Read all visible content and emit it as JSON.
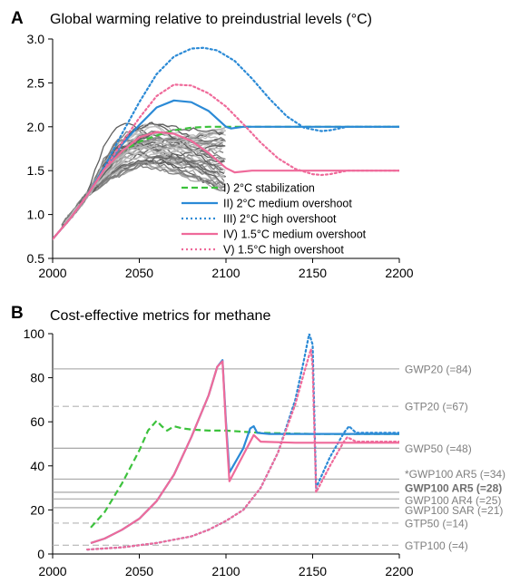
{
  "panels": {
    "a": {
      "letter": "A",
      "title": "Global warming relative to preindustrial levels (°C)"
    },
    "b": {
      "letter": "B",
      "title": "Cost-effective metrics for methane"
    }
  },
  "chart_data": [
    {
      "type": "line",
      "title": "Global warming relative to preindustrial levels (°C)",
      "xlim": [
        2000,
        2200
      ],
      "ylim": [
        0.5,
        3.0
      ],
      "xticks": [
        2000,
        2050,
        2100,
        2150,
        2200
      ],
      "yticks": [
        "0.5",
        "1.0",
        "1.5",
        "2.0",
        "2.5",
        "3.0"
      ],
      "series": [
        {
          "name": "I) 2°C stabilization",
          "color": "#3cc23c",
          "style": "dashed",
          "points": [
            [
              2000,
              0.72
            ],
            [
              2010,
              0.95
            ],
            [
              2020,
              1.22
            ],
            [
              2030,
              1.52
            ],
            [
              2040,
              1.72
            ],
            [
              2050,
              1.83
            ],
            [
              2060,
              1.9
            ],
            [
              2070,
              1.96
            ],
            [
              2080,
              1.99
            ],
            [
              2090,
              2.0
            ],
            [
              2100,
              2.0
            ],
            [
              2150,
              2.0
            ],
            [
              2200,
              2.0
            ]
          ]
        },
        {
          "name": "II) 2°C medium overshoot",
          "color": "#2b8ad6",
          "style": "solid",
          "points": [
            [
              2000,
              0.72
            ],
            [
              2010,
              0.95
            ],
            [
              2020,
              1.22
            ],
            [
              2030,
              1.52
            ],
            [
              2040,
              1.8
            ],
            [
              2050,
              2.02
            ],
            [
              2060,
              2.22
            ],
            [
              2070,
              2.3
            ],
            [
              2080,
              2.28
            ],
            [
              2090,
              2.18
            ],
            [
              2100,
              2.0
            ],
            [
              2103,
              1.98
            ],
            [
              2110,
              2.0
            ],
            [
              2150,
              2.0
            ],
            [
              2200,
              2.0
            ]
          ]
        },
        {
          "name": "III) 2°C high overshoot",
          "color": "#2b8ad6",
          "style": "dotted",
          "points": [
            [
              2000,
              0.72
            ],
            [
              2010,
              0.95
            ],
            [
              2020,
              1.22
            ],
            [
              2030,
              1.55
            ],
            [
              2040,
              1.92
            ],
            [
              2050,
              2.28
            ],
            [
              2060,
              2.6
            ],
            [
              2070,
              2.8
            ],
            [
              2080,
              2.89
            ],
            [
              2087,
              2.9
            ],
            [
              2095,
              2.87
            ],
            [
              2105,
              2.75
            ],
            [
              2115,
              2.55
            ],
            [
              2125,
              2.32
            ],
            [
              2135,
              2.12
            ],
            [
              2145,
              1.99
            ],
            [
              2155,
              1.95
            ],
            [
              2160,
              1.96
            ],
            [
              2170,
              2.0
            ],
            [
              2200,
              2.0
            ]
          ]
        },
        {
          "name": "IV) 1.5°C medium overshoot",
          "color": "#ef6a9a",
          "style": "solid",
          "points": [
            [
              2000,
              0.72
            ],
            [
              2010,
              0.95
            ],
            [
              2020,
              1.22
            ],
            [
              2030,
              1.52
            ],
            [
              2040,
              1.72
            ],
            [
              2050,
              1.88
            ],
            [
              2060,
              1.94
            ],
            [
              2070,
              1.92
            ],
            [
              2080,
              1.84
            ],
            [
              2090,
              1.7
            ],
            [
              2100,
              1.53
            ],
            [
              2105,
              1.48
            ],
            [
              2115,
              1.5
            ],
            [
              2200,
              1.5
            ]
          ]
        },
        {
          "name": "V) 1.5°C high overshoot",
          "color": "#ef6a9a",
          "style": "dotted",
          "points": [
            [
              2000,
              0.72
            ],
            [
              2010,
              0.95
            ],
            [
              2020,
              1.22
            ],
            [
              2030,
              1.52
            ],
            [
              2040,
              1.82
            ],
            [
              2050,
              2.1
            ],
            [
              2060,
              2.35
            ],
            [
              2070,
              2.48
            ],
            [
              2080,
              2.47
            ],
            [
              2090,
              2.38
            ],
            [
              2100,
              2.23
            ],
            [
              2110,
              2.03
            ],
            [
              2120,
              1.82
            ],
            [
              2130,
              1.64
            ],
            [
              2140,
              1.52
            ],
            [
              2150,
              1.46
            ],
            [
              2155,
              1.45
            ],
            [
              2160,
              1.46
            ],
            [
              2170,
              1.5
            ],
            [
              2200,
              1.5
            ]
          ]
        }
      ],
      "legend": [
        "I) 2°C stabilization",
        "II) 2°C medium overshoot",
        "III) 2°C high overshoot",
        "IV) 1.5°C medium overshoot",
        "V) 1.5°C high overshoot"
      ],
      "legend_position": "bottom-center",
      "background_ensemble": "grey model trajectories 2005–2100"
    },
    {
      "type": "line",
      "title": "Cost-effective metrics for methane",
      "xlim": [
        2000,
        2200
      ],
      "ylim": [
        0,
        100
      ],
      "xticks": [
        2000,
        2050,
        2100,
        2150,
        2200
      ],
      "yticks": [
        "0",
        "20",
        "40",
        "60",
        "80",
        "100"
      ],
      "series": [
        {
          "name": "I) 2°C stabilization",
          "color": "#3cc23c",
          "style": "dashed",
          "points": [
            [
              2022,
              12
            ],
            [
              2030,
              19
            ],
            [
              2040,
              32
            ],
            [
              2050,
              47
            ],
            [
              2055,
              56
            ],
            [
              2060,
              60.5
            ],
            [
              2063,
              58
            ],
            [
              2066,
              56
            ],
            [
              2070,
              58
            ],
            [
              2075,
              57
            ],
            [
              2080,
              56.5
            ],
            [
              2090,
              56
            ],
            [
              2100,
              56
            ],
            [
              2120,
              55
            ],
            [
              2150,
              54.5
            ],
            [
              2200,
              54.5
            ]
          ]
        },
        {
          "name": "II) 2°C medium overshoot",
          "color": "#2b8ad6",
          "style": "solid",
          "points": [
            [
              2022,
              5
            ],
            [
              2030,
              7
            ],
            [
              2040,
              11
            ],
            [
              2050,
              16
            ],
            [
              2060,
              24
            ],
            [
              2070,
              36
            ],
            [
              2080,
              53
            ],
            [
              2090,
              72
            ],
            [
              2095,
              85
            ],
            [
              2098,
              88
            ],
            [
              2100,
              60
            ],
            [
              2102,
              37
            ],
            [
              2110,
              48
            ],
            [
              2114,
              57
            ],
            [
              2116,
              58
            ],
            [
              2118,
              55
            ],
            [
              2125,
              54.5
            ],
            [
              2200,
              54.5
            ]
          ]
        },
        {
          "name": "III) 2°C high overshoot",
          "color": "#2b8ad6",
          "style": "dotted",
          "points": [
            [
              2020,
              2
            ],
            [
              2040,
              3
            ],
            [
              2060,
              5
            ],
            [
              2080,
              8
            ],
            [
              2090,
              11
            ],
            [
              2100,
              15
            ],
            [
              2110,
              20
            ],
            [
              2120,
              30
            ],
            [
              2130,
              46
            ],
            [
              2140,
              70
            ],
            [
              2145,
              88
            ],
            [
              2148,
              100
            ],
            [
              2150,
              95
            ],
            [
              2152,
              30
            ],
            [
              2160,
              44
            ],
            [
              2168,
              55
            ],
            [
              2171,
              58
            ],
            [
              2175,
              55
            ],
            [
              2185,
              55
            ],
            [
              2200,
              55
            ]
          ]
        },
        {
          "name": "IV) 1.5°C medium overshoot",
          "color": "#ef6a9a",
          "style": "solid",
          "points": [
            [
              2022,
              5
            ],
            [
              2030,
              7
            ],
            [
              2040,
              11
            ],
            [
              2050,
              16
            ],
            [
              2060,
              24
            ],
            [
              2070,
              36
            ],
            [
              2080,
              53
            ],
            [
              2090,
              72
            ],
            [
              2095,
              85
            ],
            [
              2098,
              87.5
            ],
            [
              2100,
              58
            ],
            [
              2102,
              33
            ],
            [
              2110,
              45
            ],
            [
              2116,
              54
            ],
            [
              2120,
              51
            ],
            [
              2140,
              50.5
            ],
            [
              2200,
              50.5
            ]
          ]
        },
        {
          "name": "V) 1.5°C high overshoot",
          "color": "#ef6a9a",
          "style": "dotted",
          "points": [
            [
              2020,
              2
            ],
            [
              2040,
              3
            ],
            [
              2060,
              5
            ],
            [
              2080,
              8
            ],
            [
              2090,
              11
            ],
            [
              2100,
              15
            ],
            [
              2110,
              20
            ],
            [
              2120,
              30
            ],
            [
              2130,
              46
            ],
            [
              2140,
              68
            ],
            [
              2145,
              82
            ],
            [
              2149,
              93
            ],
            [
              2150,
              85
            ],
            [
              2152,
              28
            ],
            [
              2160,
              40
            ],
            [
              2168,
              51
            ],
            [
              2170,
              53
            ],
            [
              2175,
              51
            ],
            [
              2200,
              51
            ]
          ]
        }
      ],
      "reference_lines": [
        {
          "label": "GWP20 (=84)",
          "value": 84,
          "style": "solid"
        },
        {
          "label": "GTP20 (=67)",
          "value": 67,
          "style": "dashed"
        },
        {
          "label": "GWP50 (=48)",
          "value": 48,
          "style": "solid"
        },
        {
          "label": "*GWP100 AR5 (=34)",
          "value": 34,
          "style": "solid"
        },
        {
          "label": "GWP100 AR5 (=28)",
          "value": 28,
          "style": "solid",
          "bold": true
        },
        {
          "label": "GWP100 AR4 (=25)",
          "value": 25,
          "style": "solid"
        },
        {
          "label": "GWP100 SAR (=21)",
          "value": 21,
          "style": "solid"
        },
        {
          "label": "GTP50 (=14)",
          "value": 14,
          "style": "dashed"
        },
        {
          "label": "GTP100 (=4)",
          "value": 4,
          "style": "dashed"
        }
      ]
    }
  ]
}
